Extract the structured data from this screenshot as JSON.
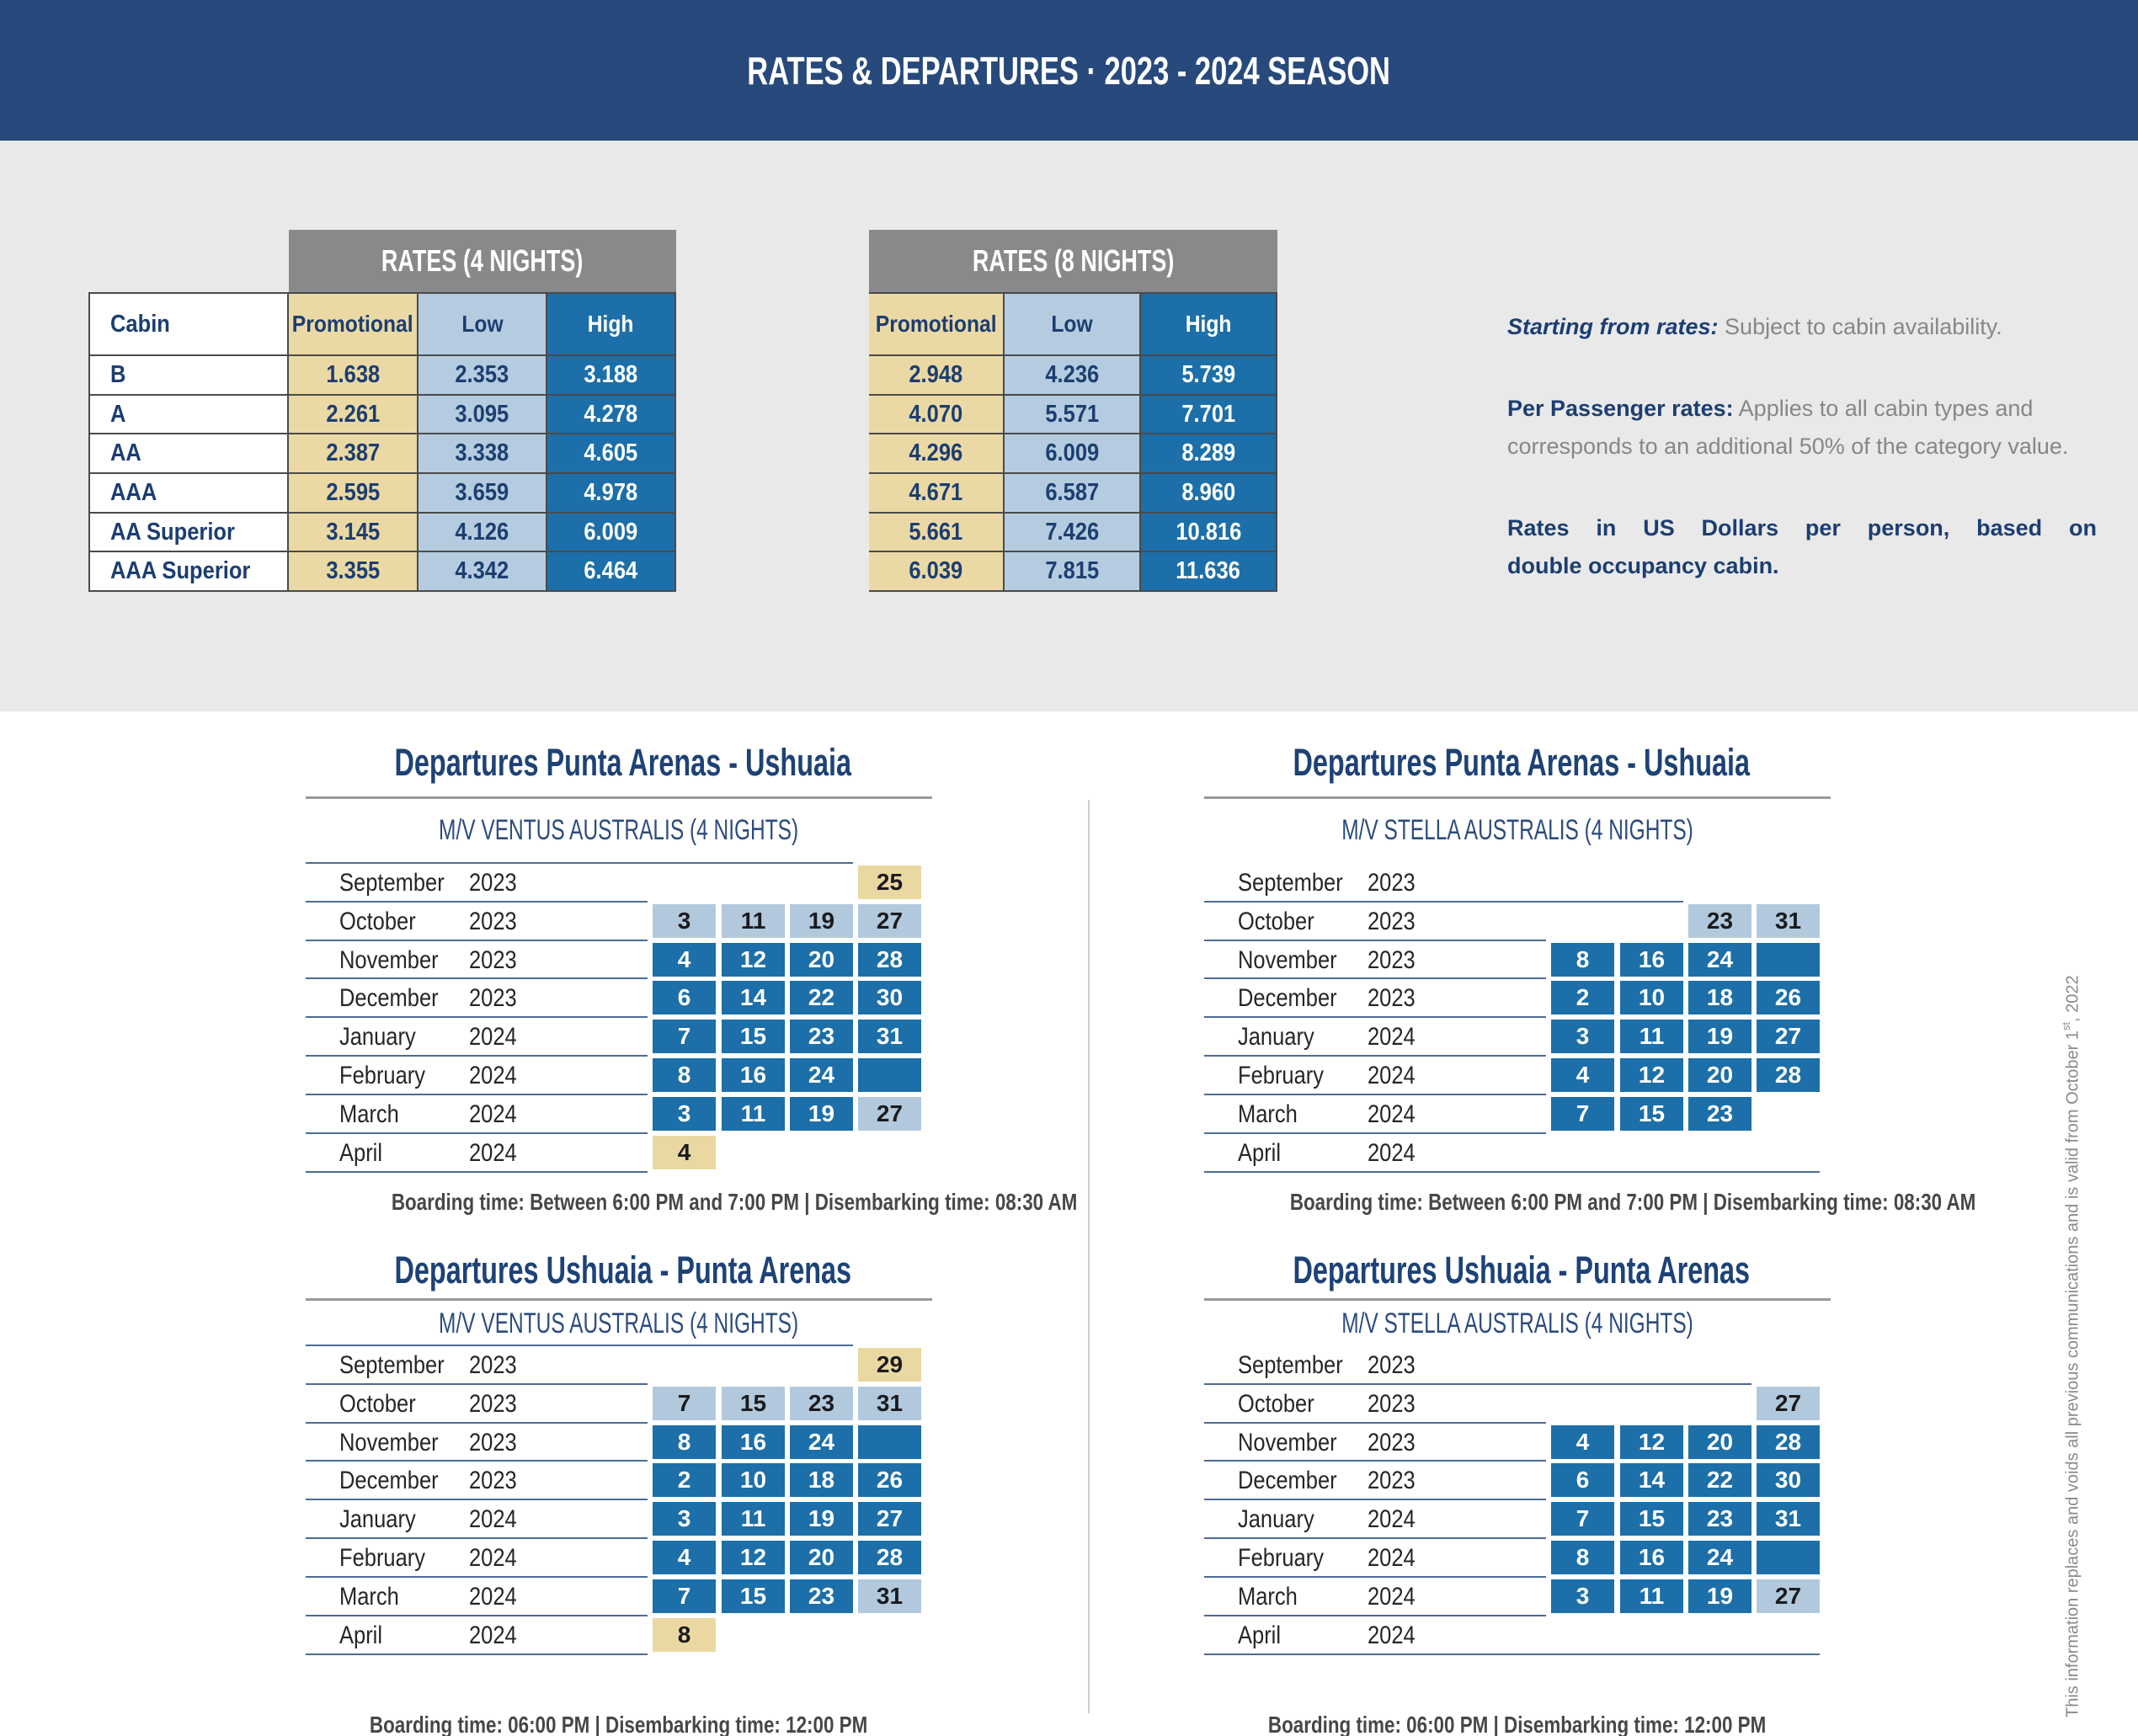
{
  "header": {
    "title": "RATES & DEPARTURES · 2023 - 2024 SEASON"
  },
  "rates": {
    "cabin_header": "Cabin",
    "tables": [
      {
        "title": "RATES (4 NIGHTS)",
        "columns": [
          "Promotional",
          "Low",
          "High"
        ],
        "rows": [
          {
            "cabin": "B",
            "promotional": "1.638",
            "low": "2.353",
            "high": "3.188"
          },
          {
            "cabin": "A",
            "promotional": "2.261",
            "low": "3.095",
            "high": "4.278"
          },
          {
            "cabin": "AA",
            "promotional": "2.387",
            "low": "3.338",
            "high": "4.605"
          },
          {
            "cabin": "AAA",
            "promotional": "2.595",
            "low": "3.659",
            "high": "4.978"
          },
          {
            "cabin": "AA Superior",
            "promotional": "3.145",
            "low": "4.126",
            "high": "6.009"
          },
          {
            "cabin": "AAA Superior",
            "promotional": "3.355",
            "low": "4.342",
            "high": "6.464"
          }
        ]
      },
      {
        "title": "RATES (8 NIGHTS)",
        "columns": [
          "Promotional",
          "Low",
          "High"
        ],
        "rows": [
          {
            "cabin": "B",
            "promotional": "2.948",
            "low": "4.236",
            "high": "5.739"
          },
          {
            "cabin": "A",
            "promotional": "4.070",
            "low": "5.571",
            "high": "7.701"
          },
          {
            "cabin": "AA",
            "promotional": "4.296",
            "low": "6.009",
            "high": "8.289"
          },
          {
            "cabin": "AAA",
            "promotional": "4.671",
            "low": "6.587",
            "high": "8.960"
          },
          {
            "cabin": "AA Superior",
            "promotional": "5.661",
            "low": "7.426",
            "high": "10.816"
          },
          {
            "cabin": "AAA Superior",
            "promotional": "6.039",
            "low": "7.815",
            "high": "11.636"
          }
        ]
      }
    ]
  },
  "notes": {
    "p1_bold": "Starting from rates:",
    "p1_text": " Subject to cabin availability.",
    "p2_bold": "Per Passenger rates:",
    "p2_text": " Applies to all cabin types and",
    "p2_text2": "corresponds to an additional 50% of the category value.",
    "p3_line1": "Rates in US Dollars per person, based on",
    "p3_line2": "double occupancy cabin."
  },
  "calendars": [
    {
      "title": "Departures Punta Arenas - Ushuaia",
      "ship": "M/V VENTUS AUSTRALIS (4 NIGHTS)",
      "boarding": "Boarding time: Between 6:00 PM and 7:00 PM | Disembarking time: 08:30 AM",
      "top_rule": true,
      "rows": [
        {
          "month": "September",
          "year": "2023",
          "chips": [
            null,
            null,
            null,
            {
              "day": "25",
              "color": "tan"
            }
          ]
        },
        {
          "month": "October",
          "year": "2023",
          "chips": [
            {
              "day": "3",
              "color": "light"
            },
            {
              "day": "11",
              "color": "light"
            },
            {
              "day": "19",
              "color": "light"
            },
            {
              "day": "27",
              "color": "light"
            }
          ]
        },
        {
          "month": "November",
          "year": "2023",
          "chips": [
            {
              "day": "4",
              "color": "dark"
            },
            {
              "day": "12",
              "color": "dark"
            },
            {
              "day": "20",
              "color": "dark"
            },
            {
              "day": "28",
              "color": "dark"
            }
          ]
        },
        {
          "month": "December",
          "year": "2023",
          "chips": [
            {
              "day": "6",
              "color": "dark"
            },
            {
              "day": "14",
              "color": "dark"
            },
            {
              "day": "22",
              "color": "dark"
            },
            {
              "day": "30",
              "color": "dark"
            }
          ]
        },
        {
          "month": "January",
          "year": "2024",
          "chips": [
            {
              "day": "7",
              "color": "dark"
            },
            {
              "day": "15",
              "color": "dark"
            },
            {
              "day": "23",
              "color": "dark"
            },
            {
              "day": "31",
              "color": "dark"
            }
          ]
        },
        {
          "month": "February",
          "year": "2024",
          "chips": [
            {
              "day": "8",
              "color": "dark"
            },
            {
              "day": "16",
              "color": "dark"
            },
            {
              "day": "24",
              "color": "dark"
            },
            {
              "day": "",
              "color": "dark"
            }
          ]
        },
        {
          "month": "March",
          "year": "2024",
          "chips": [
            {
              "day": "3",
              "color": "dark"
            },
            {
              "day": "11",
              "color": "dark"
            },
            {
              "day": "19",
              "color": "dark"
            },
            {
              "day": "27",
              "color": "light"
            }
          ]
        },
        {
          "month": "April",
          "year": "2024",
          "chips": [
            {
              "day": "4",
              "color": "tan"
            },
            null,
            null,
            null
          ]
        }
      ]
    },
    {
      "title": "Departures Punta Arenas - Ushuaia",
      "ship": "M/V STELLA AUSTRALIS (4 NIGHTS)",
      "boarding": "Boarding time: Between 6:00 PM and 7:00 PM | Disembarking time: 08:30 AM",
      "top_rule": false,
      "rows": [
        {
          "month": "September",
          "year": "2023",
          "chips": [
            null,
            null,
            null,
            null
          ]
        },
        {
          "month": "October",
          "year": "2023",
          "chips": [
            null,
            null,
            {
              "day": "23",
              "color": "light"
            },
            {
              "day": "31",
              "color": "light"
            }
          ]
        },
        {
          "month": "November",
          "year": "2023",
          "chips": [
            {
              "day": "8",
              "color": "dark"
            },
            {
              "day": "16",
              "color": "dark"
            },
            {
              "day": "24",
              "color": "dark"
            },
            {
              "day": "",
              "color": "dark"
            }
          ]
        },
        {
          "month": "December",
          "year": "2023",
          "chips": [
            {
              "day": "2",
              "color": "dark"
            },
            {
              "day": "10",
              "color": "dark"
            },
            {
              "day": "18",
              "color": "dark"
            },
            {
              "day": "26",
              "color": "dark"
            }
          ]
        },
        {
          "month": "January",
          "year": "2024",
          "chips": [
            {
              "day": "3",
              "color": "dark"
            },
            {
              "day": "11",
              "color": "dark"
            },
            {
              "day": "19",
              "color": "dark"
            },
            {
              "day": "27",
              "color": "dark"
            }
          ]
        },
        {
          "month": "February",
          "year": "2024",
          "chips": [
            {
              "day": "4",
              "color": "dark"
            },
            {
              "day": "12",
              "color": "dark"
            },
            {
              "day": "20",
              "color": "dark"
            },
            {
              "day": "28",
              "color": "dark"
            }
          ]
        },
        {
          "month": "March",
          "year": "2024",
          "chips": [
            {
              "day": "7",
              "color": "dark"
            },
            {
              "day": "15",
              "color": "dark"
            },
            {
              "day": "23",
              "color": "dark"
            },
            null
          ]
        },
        {
          "month": "April",
          "year": "2024",
          "chips": [
            null,
            null,
            null,
            null
          ]
        }
      ]
    },
    {
      "title": "Departures Ushuaia - Punta Arenas",
      "ship": "M/V VENTUS AUSTRALIS (4 NIGHTS)",
      "boarding": "Boarding time: 06:00 PM | Disembarking time: 12:00 PM",
      "top_rule": true,
      "rows": [
        {
          "month": "September",
          "year": "2023",
          "chips": [
            null,
            null,
            null,
            {
              "day": "29",
              "color": "tan"
            }
          ]
        },
        {
          "month": "October",
          "year": "2023",
          "chips": [
            {
              "day": "7",
              "color": "light"
            },
            {
              "day": "15",
              "color": "light"
            },
            {
              "day": "23",
              "color": "light"
            },
            {
              "day": "31",
              "color": "light"
            }
          ]
        },
        {
          "month": "November",
          "year": "2023",
          "chips": [
            {
              "day": "8",
              "color": "dark"
            },
            {
              "day": "16",
              "color": "dark"
            },
            {
              "day": "24",
              "color": "dark"
            },
            {
              "day": "",
              "color": "dark"
            }
          ]
        },
        {
          "month": "December",
          "year": "2023",
          "chips": [
            {
              "day": "2",
              "color": "dark"
            },
            {
              "day": "10",
              "color": "dark"
            },
            {
              "day": "18",
              "color": "dark"
            },
            {
              "day": "26",
              "color": "dark"
            }
          ]
        },
        {
          "month": "January",
          "year": "2024",
          "chips": [
            {
              "day": "3",
              "color": "dark"
            },
            {
              "day": "11",
              "color": "dark"
            },
            {
              "day": "19",
              "color": "dark"
            },
            {
              "day": "27",
              "color": "dark"
            }
          ]
        },
        {
          "month": "February",
          "year": "2024",
          "chips": [
            {
              "day": "4",
              "color": "dark"
            },
            {
              "day": "12",
              "color": "dark"
            },
            {
              "day": "20",
              "color": "dark"
            },
            {
              "day": "28",
              "color": "dark"
            }
          ]
        },
        {
          "month": "March",
          "year": "2024",
          "chips": [
            {
              "day": "7",
              "color": "dark"
            },
            {
              "day": "15",
              "color": "dark"
            },
            {
              "day": "23",
              "color": "dark"
            },
            {
              "day": "31",
              "color": "light"
            }
          ]
        },
        {
          "month": "April",
          "year": "2024",
          "chips": [
            {
              "day": "8",
              "color": "tan"
            },
            null,
            null,
            null
          ]
        }
      ]
    },
    {
      "title": "Departures Ushuaia - Punta Arenas",
      "ship": "M/V STELLA AUSTRALIS (4 NIGHTS)",
      "boarding": "Boarding time: 06:00 PM | Disembarking time: 12:00 PM",
      "top_rule": false,
      "rows": [
        {
          "month": "September",
          "year": "2023",
          "chips": [
            null,
            null,
            null,
            null
          ]
        },
        {
          "month": "October",
          "year": "2023",
          "chips": [
            null,
            null,
            null,
            {
              "day": "27",
              "color": "light"
            }
          ]
        },
        {
          "month": "November",
          "year": "2023",
          "chips": [
            {
              "day": "4",
              "color": "dark"
            },
            {
              "day": "12",
              "color": "dark"
            },
            {
              "day": "20",
              "color": "dark"
            },
            {
              "day": "28",
              "color": "dark"
            }
          ]
        },
        {
          "month": "December",
          "year": "2023",
          "chips": [
            {
              "day": "6",
              "color": "dark"
            },
            {
              "day": "14",
              "color": "dark"
            },
            {
              "day": "22",
              "color": "dark"
            },
            {
              "day": "30",
              "color": "dark"
            }
          ]
        },
        {
          "month": "January",
          "year": "2024",
          "chips": [
            {
              "day": "7",
              "color": "dark"
            },
            {
              "day": "15",
              "color": "dark"
            },
            {
              "day": "23",
              "color": "dark"
            },
            {
              "day": "31",
              "color": "dark"
            }
          ]
        },
        {
          "month": "February",
          "year": "2024",
          "chips": [
            {
              "day": "8",
              "color": "dark"
            },
            {
              "day": "16",
              "color": "dark"
            },
            {
              "day": "24",
              "color": "dark"
            },
            {
              "day": "",
              "color": "dark"
            }
          ]
        },
        {
          "month": "March",
          "year": "2024",
          "chips": [
            {
              "day": "3",
              "color": "dark"
            },
            {
              "day": "11",
              "color": "dark"
            },
            {
              "day": "19",
              "color": "dark"
            },
            {
              "day": "27",
              "color": "light"
            }
          ]
        },
        {
          "month": "April",
          "year": "2024",
          "chips": [
            null,
            null,
            null,
            null
          ]
        }
      ]
    }
  ],
  "sidenote": {
    "pre": "This information replaces and voids all previous communications and is valid from October 1",
    "sup": "st",
    "post": ", 2022"
  },
  "colors": {
    "navy_bar": "#27497B",
    "navy_text": "#1C3E70",
    "band_gray": "#E9E9EA",
    "table_header_gray": "#88898B",
    "tan": "#EBD9A5",
    "light_blue": "#B5CCE0",
    "dark_blue": "#1C6FA8",
    "rule_blue": "#4C6C94",
    "note_gray": "#85878A"
  }
}
